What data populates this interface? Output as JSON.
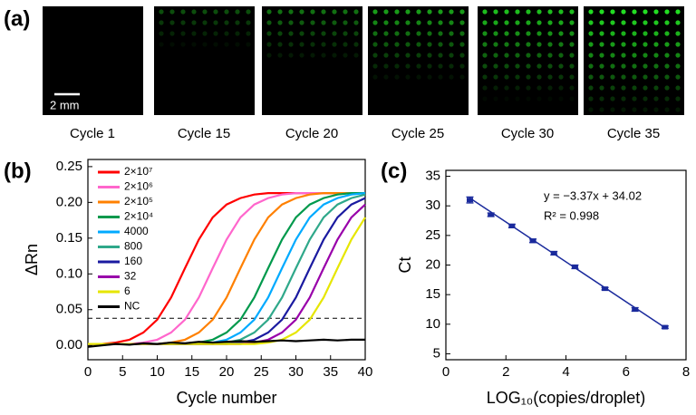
{
  "panel_labels": [
    "(a)",
    "(b)",
    "(c)"
  ],
  "images": {
    "captions": [
      "Cycle 1",
      "Cycle 15",
      "Cycle 20",
      "Cycle 25",
      "Cycle 30",
      "Cycle 35"
    ],
    "scale_bar": "2 mm"
  },
  "chart_data": [
    {
      "type": "line",
      "x_label": "Cycle number",
      "y_label": "ΔRn",
      "x": [
        0,
        2,
        4,
        6,
        8,
        10,
        12,
        14,
        16,
        18,
        20,
        22,
        24,
        26,
        28,
        30,
        32,
        34,
        36,
        38,
        40
      ],
      "xlim": [
        0,
        40
      ],
      "xticks": [
        0,
        5,
        10,
        15,
        20,
        25,
        30,
        35,
        40
      ],
      "ylim": [
        -0.02,
        0.26
      ],
      "yticks": [
        {
          "value": 0,
          "label": "0.00"
        },
        0.05,
        {
          "value": 0.1,
          "label": "0.10"
        },
        0.15,
        {
          "value": 0.2,
          "label": "0.20"
        },
        0.25
      ],
      "threshold": 0.038,
      "series": [
        {
          "name": "2×10⁷",
          "color": "#ff0000",
          "values": [
            0.002,
            0.002,
            0.004,
            0.008,
            0.018,
            0.036,
            0.067,
            0.108,
            0.148,
            0.179,
            0.197,
            0.206,
            0.211,
            0.213,
            0.213,
            0.213,
            0.213,
            0.213,
            0.213,
            0.213,
            0.213
          ]
        },
        {
          "name": "2×10⁶",
          "color": "#ff66cc",
          "values": [
            0.002,
            0.002,
            0.002,
            0.002,
            0.004,
            0.008,
            0.018,
            0.036,
            0.067,
            0.108,
            0.148,
            0.179,
            0.197,
            0.206,
            0.211,
            0.213,
            0.213,
            0.213,
            0.213,
            0.213,
            0.213
          ]
        },
        {
          "name": "2×10⁵",
          "color": "#ff8000",
          "values": [
            0.002,
            0.002,
            0.002,
            0.002,
            0.002,
            0.002,
            0.004,
            0.008,
            0.018,
            0.036,
            0.067,
            0.108,
            0.148,
            0.179,
            0.197,
            0.206,
            0.211,
            0.213,
            0.213,
            0.213,
            0.213
          ]
        },
        {
          "name": "2×10⁴",
          "color": "#00994c",
          "values": [
            0.002,
            0.002,
            0.002,
            0.002,
            0.002,
            0.002,
            0.002,
            0.002,
            0.004,
            0.008,
            0.018,
            0.036,
            0.067,
            0.108,
            0.148,
            0.179,
            0.197,
            0.206,
            0.211,
            0.213,
            0.213
          ]
        },
        {
          "name": "4000",
          "color": "#00aaff",
          "values": [
            0.002,
            0.002,
            0.002,
            0.002,
            0.002,
            0.002,
            0.002,
            0.002,
            0.002,
            0.004,
            0.008,
            0.018,
            0.036,
            0.067,
            0.108,
            0.148,
            0.179,
            0.197,
            0.206,
            0.211,
            0.213
          ]
        },
        {
          "name": "800",
          "color": "#2fa88a",
          "values": [
            0.002,
            0.002,
            0.002,
            0.002,
            0.002,
            0.002,
            0.002,
            0.002,
            0.002,
            0.002,
            0.004,
            0.008,
            0.018,
            0.036,
            0.067,
            0.108,
            0.148,
            0.179,
            0.197,
            0.206,
            0.211
          ]
        },
        {
          "name": "160",
          "color": "#1a1aa0",
          "values": [
            0.002,
            0.002,
            0.002,
            0.002,
            0.002,
            0.002,
            0.002,
            0.002,
            0.002,
            0.002,
            0.002,
            0.004,
            0.008,
            0.018,
            0.036,
            0.067,
            0.108,
            0.148,
            0.179,
            0.197,
            0.206
          ]
        },
        {
          "name": "32",
          "color": "#9900aa",
          "values": [
            0.002,
            0.002,
            0.002,
            0.002,
            0.002,
            0.002,
            0.002,
            0.002,
            0.002,
            0.002,
            0.002,
            0.002,
            0.004,
            0.008,
            0.018,
            0.036,
            0.067,
            0.108,
            0.148,
            0.179,
            0.197
          ]
        },
        {
          "name": "6",
          "color": "#e6e600",
          "values": [
            0.002,
            0.002,
            0.002,
            0.002,
            0.002,
            0.002,
            0.002,
            0.002,
            0.002,
            0.002,
            0.002,
            0.002,
            0.002,
            0.004,
            0.008,
            0.018,
            0.036,
            0.067,
            0.108,
            0.148,
            0.179
          ]
        },
        {
          "name": "NC",
          "color": "#000000",
          "values": [
            -0.002,
            0.0,
            0.002,
            0.001,
            0.003,
            0.002,
            0.004,
            0.003,
            0.005,
            0.004,
            0.005,
            0.006,
            0.005,
            0.006,
            0.007,
            0.006,
            0.007,
            0.008,
            0.007,
            0.008,
            0.008
          ]
        }
      ]
    },
    {
      "type": "scatter",
      "x_label": "LOG₁₀(copies/droplet)",
      "y_label": "Ct",
      "color": "#1a2a9c",
      "x": [
        0.8,
        1.5,
        2.2,
        2.9,
        3.6,
        4.3,
        5.3,
        6.3,
        7.3
      ],
      "values": [
        31.0,
        28.5,
        26.6,
        24.1,
        22.0,
        19.7,
        16.0,
        12.5,
        9.5
      ],
      "errors": [
        0.5,
        0.3,
        0.3,
        0.3,
        0.3,
        0.3,
        0.2,
        0.3,
        0.2
      ],
      "fit": {
        "x": [
          0.8,
          7.3
        ],
        "values": [
          31.32,
          9.42
        ]
      },
      "annotations": [
        "y = −3.37x + 34.02",
        "R² = 0.998"
      ],
      "xlim": [
        0,
        8
      ],
      "xticks": [
        0,
        2,
        4,
        6,
        8
      ],
      "ylim": [
        4,
        36
      ],
      "yticks": [
        5,
        10,
        15,
        20,
        25,
        30,
        35
      ]
    }
  ]
}
